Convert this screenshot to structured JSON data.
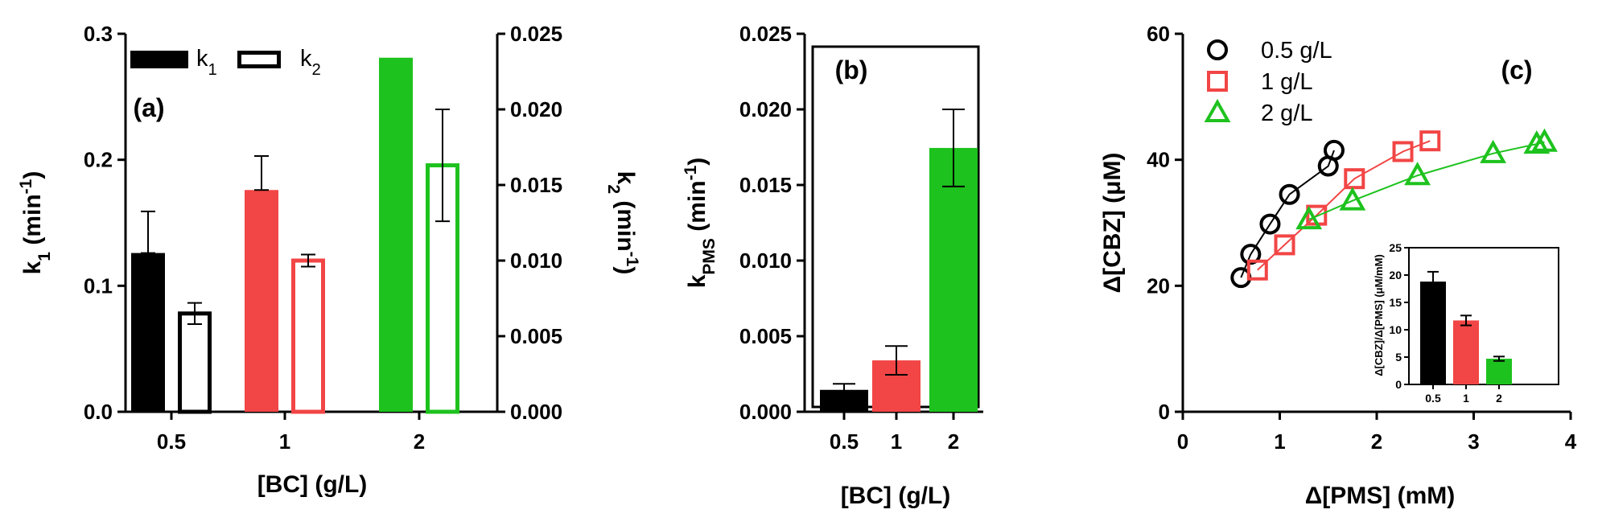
{
  "colors": {
    "c05": "#000000",
    "c1": "#f24545",
    "c2": "#1ec21e"
  },
  "chart_data": [
    {
      "panel": "(a)",
      "type": "bar",
      "categories": [
        "0.5",
        "1",
        "2"
      ],
      "xlabel": "[BC] (g/L)",
      "ylabel_left": "k1 (min-1)",
      "ylabel_right": "k2 (min-1)",
      "ylim_left": [
        0,
        0.3
      ],
      "ylim_right": [
        0,
        0.025
      ],
      "yticks_left": [
        "0.0",
        "0.1",
        "0.2",
        "0.3"
      ],
      "yticks_right": [
        "0.000",
        "0.005",
        "0.010",
        "0.015",
        "0.020",
        "0.025"
      ],
      "legend": [
        "k1",
        "k2"
      ],
      "legend_sub": [
        "1",
        "2"
      ],
      "series": [
        {
          "name": "k1",
          "axis": "left",
          "style": "filled",
          "values": [
            0.126,
            0.176,
            0.281
          ],
          "errors": [
            0.033,
            0.027,
            0
          ]
        },
        {
          "name": "k2",
          "axis": "right",
          "style": "hollow",
          "values": [
            0.0065,
            0.01,
            0.0163
          ],
          "errors": [
            0.0007,
            0.0004,
            0.0037
          ]
        }
      ]
    },
    {
      "panel": "(b)",
      "type": "bar",
      "categories": [
        "0.5",
        "1",
        "2"
      ],
      "xlabel": "[BC] (g/L)",
      "ylabel": "kPMS (min-1)",
      "ylim": [
        0,
        0.025
      ],
      "yticks": [
        "0.000",
        "0.005",
        "0.010",
        "0.015",
        "0.020",
        "0.025"
      ],
      "series": [
        {
          "values": [
            0.00145,
            0.0034,
            0.01745
          ],
          "errors": [
            0.0004,
            0.00095,
            0.00255
          ]
        }
      ]
    },
    {
      "panel": "(c)",
      "type": "scatter",
      "xlabel": "Δ[PMS] (mM)",
      "ylabel": "Δ[CBZ] (μM)",
      "xlim": [
        0,
        4
      ],
      "ylim": [
        0,
        60
      ],
      "xticks": [
        "0",
        "1",
        "2",
        "3",
        "4"
      ],
      "yticks": [
        "0",
        "20",
        "40",
        "60"
      ],
      "series": [
        {
          "name": "0.5 g/L",
          "marker": "circle",
          "points": [
            [
              0.6,
              21.3
            ],
            [
              0.7,
              25.0
            ],
            [
              0.9,
              29.8
            ],
            [
              1.1,
              34.5
            ],
            [
              1.5,
              39.0
            ],
            [
              1.56,
              41.5
            ]
          ]
        },
        {
          "name": "1 g/L",
          "marker": "square",
          "points": [
            [
              0.77,
              22.5
            ],
            [
              1.05,
              26.5
            ],
            [
              1.38,
              31.2
            ],
            [
              1.77,
              37.0
            ],
            [
              2.27,
              41.3
            ],
            [
              2.55,
              43.0
            ]
          ]
        },
        {
          "name": "2 g/L",
          "marker": "triangle",
          "points": [
            [
              1.3,
              30.5
            ],
            [
              1.75,
              33.5
            ],
            [
              2.42,
              37.5
            ],
            [
              3.2,
              41.0
            ],
            [
              3.65,
              42.5
            ],
            [
              3.73,
              42.8
            ]
          ]
        }
      ],
      "inset": {
        "type": "bar",
        "categories": [
          "0.5",
          "1",
          "2"
        ],
        "ylabel": "Δ[CBZ]/Δ[PMS] (μM/mM)",
        "ylim": [
          0,
          25
        ],
        "yticks": [
          "0",
          "5",
          "10",
          "15",
          "20",
          "25"
        ],
        "values": [
          18.8,
          11.7,
          4.7
        ],
        "errors": [
          1.8,
          0.9,
          0.4
        ]
      }
    }
  ]
}
